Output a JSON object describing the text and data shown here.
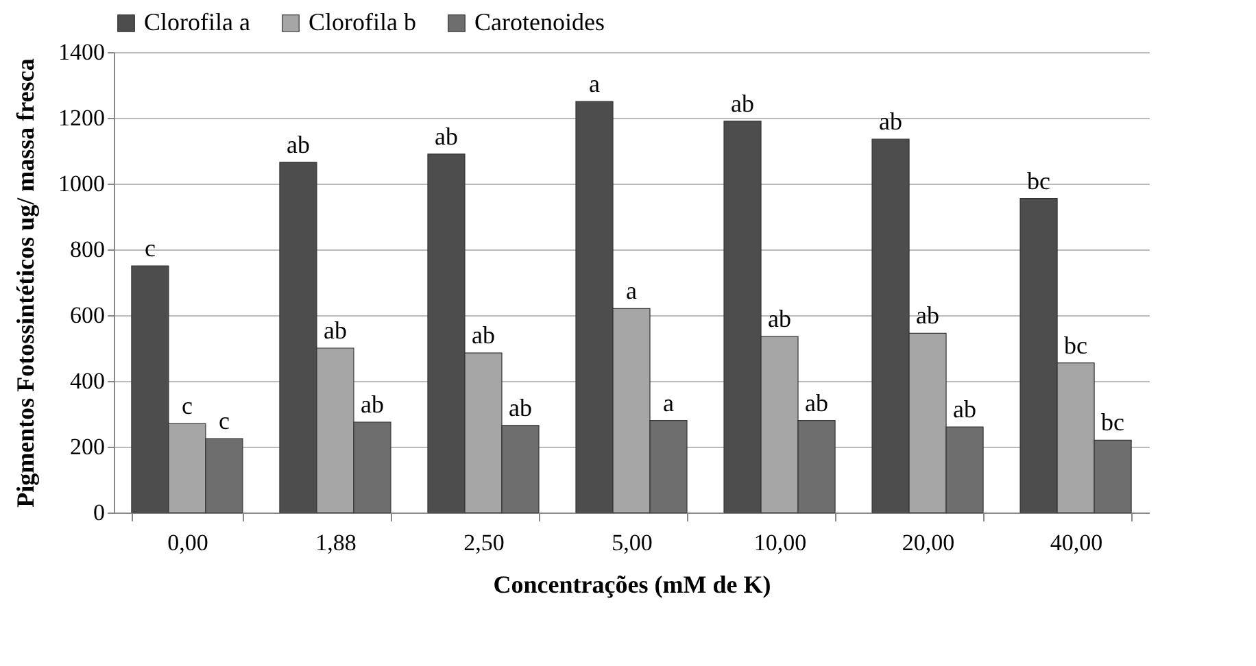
{
  "chart_data": {
    "type": "bar",
    "xlabel": "Concentrações (mM de K)",
    "ylabel": "Pigmentos Fotossintéticos ug/ massa fresca",
    "categories": [
      "0,00",
      "1,88",
      "2,50",
      "5,00",
      "10,00",
      "20,00",
      "40,00"
    ],
    "series": [
      {
        "name": "Clorofila a",
        "color": "#4d4d4d",
        "values": [
          750,
          1065,
          1090,
          1250,
          1190,
          1135,
          955
        ],
        "value_labels": [
          "c",
          "ab",
          "ab",
          "a",
          "ab",
          "ab",
          "bc"
        ]
      },
      {
        "name": "Clorofila b",
        "color": "#a6a6a6",
        "values": [
          270,
          500,
          485,
          620,
          535,
          545,
          455
        ],
        "value_labels": [
          "c",
          "ab",
          "ab",
          "a",
          "ab",
          "ab",
          "bc"
        ]
      },
      {
        "name": "Carotenoides",
        "color": "#6e6e6e",
        "values": [
          225,
          275,
          265,
          280,
          280,
          260,
          220
        ],
        "value_labels": [
          "c",
          "ab",
          "ab",
          "a",
          "ab",
          "ab",
          "bc"
        ]
      }
    ],
    "ylim": [
      0,
      1400
    ],
    "yticks": [
      0,
      200,
      400,
      600,
      800,
      1000,
      1200,
      1400
    ],
    "grid": "y",
    "legend": "top"
  }
}
